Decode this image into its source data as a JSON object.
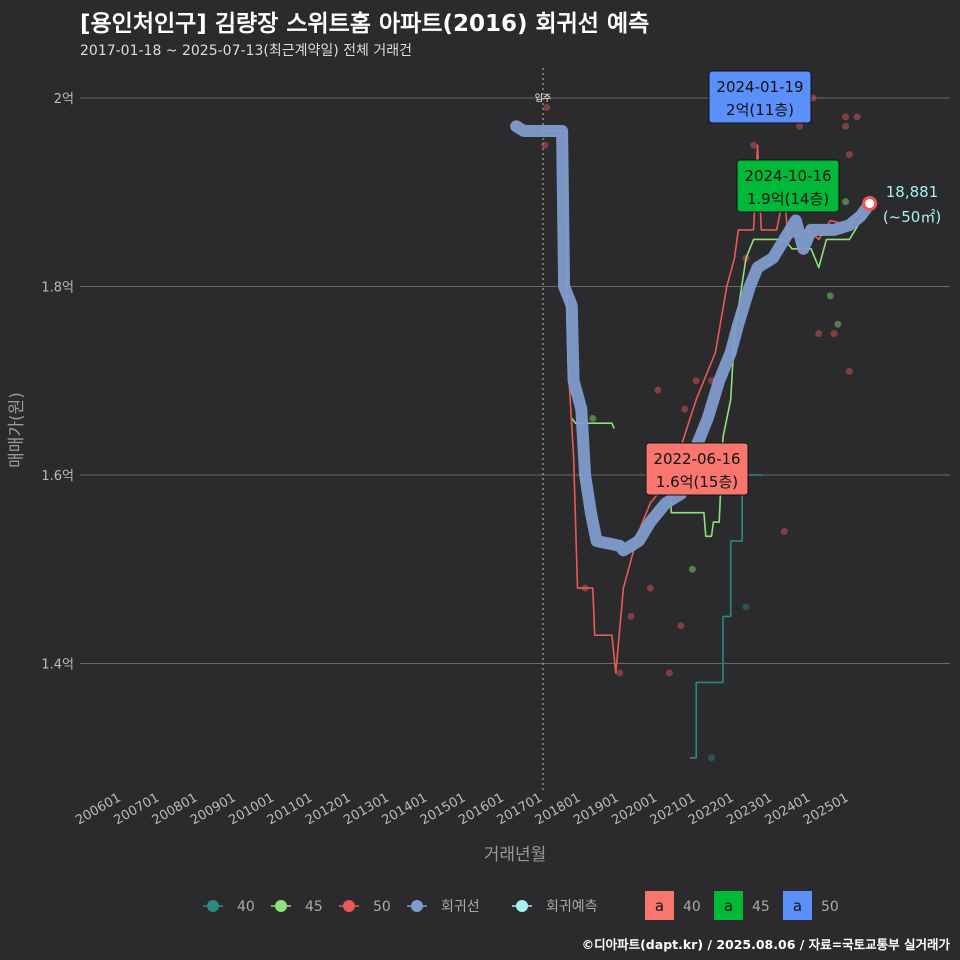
{
  "title": "[용인처인구] 김량장 스위트홈 아파트(2016) 회귀선 예측",
  "subtitle": "2017-01-18 ~ 2025-07-13(최근계약일) 전체 거래건",
  "caption": "©디아파트(dapt.kr) / 2025.08.06 / 자료=국토교통부 실거래가",
  "chart_data": {
    "type": "line",
    "xlabel": "거래년월",
    "ylabel": "매매가(원)",
    "ylim": [
      12700,
      20300
    ],
    "yticks": [
      {
        "v": 14000,
        "label": "1.4억"
      },
      {
        "v": 16000,
        "label": "1.6억"
      },
      {
        "v": 18000,
        "label": "1.8억"
      },
      {
        "v": 20000,
        "label": "2억"
      }
    ],
    "xlim": [
      2005.2,
      2025.95
    ],
    "xticks": [
      "200601",
      "200701",
      "200801",
      "200901",
      "201001",
      "201101",
      "201201",
      "201301",
      "201401",
      "201501",
      "201601",
      "201701",
      "201801",
      "201901",
      "202001",
      "202101",
      "202201",
      "202301",
      "202401",
      "202501"
    ],
    "vline": {
      "x": 2017.0,
      "label": "입주"
    },
    "colors": {
      "40": "#2a8a82",
      "45": "#8ee27a",
      "50": "#e85a5a",
      "regression": "#7f9ccc",
      "forecast": "#a8f0ee"
    },
    "series": [
      {
        "name": "40",
        "points": [
          [
            2020.85,
            13000
          ],
          [
            2021.0,
            13000
          ],
          [
            2021.0,
            13800
          ],
          [
            2021.7,
            13800
          ],
          [
            2021.7,
            14500
          ],
          [
            2021.9,
            14500
          ],
          [
            2021.9,
            15300
          ],
          [
            2022.2,
            15300
          ],
          [
            2022.2,
            16000
          ],
          [
            2022.7,
            16000
          ]
        ]
      },
      {
        "name": "45",
        "points": [
          [
            2017.75,
            16600
          ],
          [
            2017.85,
            16550
          ],
          [
            2018.8,
            16550
          ],
          [
            2018.85,
            16500
          ]
        ],
        "points2": [
          [
            2019.75,
            16000
          ],
          [
            2020.3,
            16000
          ],
          [
            2020.35,
            15600
          ],
          [
            2021.2,
            15600
          ],
          [
            2021.25,
            15350
          ],
          [
            2021.4,
            15350
          ],
          [
            2021.45,
            15500
          ],
          [
            2021.6,
            15500
          ],
          [
            2021.7,
            16400
          ],
          [
            2021.9,
            16800
          ],
          [
            2022.0,
            17500
          ],
          [
            2022.3,
            18300
          ],
          [
            2022.5,
            18500
          ],
          [
            2023.3,
            18500
          ],
          [
            2023.5,
            18400
          ],
          [
            2024.0,
            18400
          ],
          [
            2024.2,
            18200
          ],
          [
            2024.4,
            18500
          ],
          [
            2025.0,
            18500
          ],
          [
            2025.3,
            18700
          ]
        ]
      },
      {
        "name": "50",
        "points": [
          [
            2017.0,
            19650
          ],
          [
            2017.6,
            19650
          ],
          [
            2017.65,
            17200
          ],
          [
            2017.8,
            16200
          ],
          [
            2017.9,
            14800
          ],
          [
            2018.3,
            14800
          ],
          [
            2018.35,
            14300
          ],
          [
            2018.8,
            14300
          ],
          [
            2018.9,
            13900
          ],
          [
            2019.1,
            14800
          ],
          [
            2019.3,
            15100
          ],
          [
            2019.5,
            15400
          ],
          [
            2019.8,
            15700
          ],
          [
            2020.2,
            15900
          ],
          [
            2020.6,
            16300
          ],
          [
            2021.0,
            16800
          ],
          [
            2021.5,
            17300
          ],
          [
            2021.8,
            18000
          ],
          [
            2022.0,
            18300
          ],
          [
            2022.1,
            18600
          ],
          [
            2022.5,
            18600
          ],
          [
            2022.6,
            19500
          ],
          [
            2022.7,
            18600
          ],
          [
            2023.1,
            18600
          ],
          [
            2023.3,
            19000
          ],
          [
            2023.4,
            18500
          ],
          [
            2023.9,
            18600
          ],
          [
            2024.2,
            18500
          ],
          [
            2024.5,
            18700
          ],
          [
            2025.0,
            18650
          ],
          [
            2025.3,
            18800
          ],
          [
            2025.53,
            18881
          ]
        ]
      },
      {
        "name": "회귀선",
        "points": [
          [
            2016.3,
            19700
          ],
          [
            2016.5,
            19650
          ],
          [
            2017.5,
            19650
          ],
          [
            2017.55,
            18000
          ],
          [
            2017.75,
            17800
          ],
          [
            2017.8,
            17000
          ],
          [
            2018.0,
            16700
          ],
          [
            2018.1,
            16000
          ],
          [
            2018.25,
            15600
          ],
          [
            2018.4,
            15300
          ],
          [
            2019.0,
            15250
          ],
          [
            2019.1,
            15200
          ],
          [
            2019.5,
            15300
          ],
          [
            2019.8,
            15500
          ],
          [
            2020.2,
            15700
          ],
          [
            2020.6,
            15800
          ],
          [
            2021.0,
            16300
          ],
          [
            2021.3,
            16600
          ],
          [
            2021.6,
            17000
          ],
          [
            2021.9,
            17300
          ],
          [
            2022.1,
            17600
          ],
          [
            2022.4,
            18000
          ],
          [
            2022.6,
            18200
          ],
          [
            2023.0,
            18300
          ],
          [
            2023.3,
            18500
          ],
          [
            2023.6,
            18700
          ],
          [
            2023.8,
            18400
          ],
          [
            2024.0,
            18600
          ],
          [
            2024.6,
            18600
          ],
          [
            2025.0,
            18650
          ],
          [
            2025.3,
            18750
          ],
          [
            2025.53,
            18881
          ]
        ]
      }
    ],
    "scatter": [
      {
        "g": "50",
        "x": 2017.1,
        "y": 19900
      },
      {
        "g": "50",
        "x": 2017.05,
        "y": 19500
      },
      {
        "g": "50",
        "x": 2018.1,
        "y": 14800
      },
      {
        "g": "50",
        "x": 2019.0,
        "y": 13900
      },
      {
        "g": "50",
        "x": 2019.3,
        "y": 14500
      },
      {
        "g": "50",
        "x": 2019.8,
        "y": 14800
      },
      {
        "g": "50",
        "x": 2020.0,
        "y": 16900
      },
      {
        "g": "50",
        "x": 2020.3,
        "y": 13900
      },
      {
        "g": "50",
        "x": 2020.6,
        "y": 14400
      },
      {
        "g": "50",
        "x": 2020.7,
        "y": 16700
      },
      {
        "g": "50",
        "x": 2021.0,
        "y": 17000
      },
      {
        "g": "50",
        "x": 2021.4,
        "y": 17000
      },
      {
        "g": "50",
        "x": 2021.9,
        "y": 17300
      },
      {
        "g": "50",
        "x": 2022.3,
        "y": 18300
      },
      {
        "g": "50",
        "x": 2022.5,
        "y": 19500
      },
      {
        "g": "50",
        "x": 2023.3,
        "y": 15400
      },
      {
        "g": "50",
        "x": 2024.05,
        "y": 20000
      },
      {
        "g": "50",
        "x": 2023.7,
        "y": 19700
      },
      {
        "g": "50",
        "x": 2024.2,
        "y": 17500
      },
      {
        "g": "50",
        "x": 2024.9,
        "y": 19800
      },
      {
        "g": "50",
        "x": 2025.2,
        "y": 19800
      },
      {
        "g": "50",
        "x": 2024.9,
        "y": 19700
      },
      {
        "g": "50",
        "x": 2025.0,
        "y": 19400
      },
      {
        "g": "50",
        "x": 2024.6,
        "y": 17500
      },
      {
        "g": "50",
        "x": 2025.0,
        "y": 17100
      },
      {
        "g": "45",
        "x": 2018.3,
        "y": 16600
      },
      {
        "g": "45",
        "x": 2020.9,
        "y": 15000
      },
      {
        "g": "45",
        "x": 2024.5,
        "y": 17900
      },
      {
        "g": "45",
        "x": 2024.9,
        "y": 18900
      },
      {
        "g": "45",
        "x": 2024.7,
        "y": 17600
      },
      {
        "g": "40",
        "x": 2021.4,
        "y": 13000
      },
      {
        "g": "40",
        "x": 2022.3,
        "y": 14600
      }
    ],
    "annotations": [
      {
        "date": "2024-01-19",
        "value": "2억(11층)",
        "group": "50",
        "color": "#5b8ff9"
      },
      {
        "date": "2024-10-16",
        "value": "1.9억(14층)",
        "group": "45",
        "color": "#00b938"
      },
      {
        "date": "2022-06-16",
        "value": "1.6억(15층)",
        "group": "40",
        "color": "#f8766d"
      }
    ],
    "forecast": {
      "value": "18,881",
      "area": "(~50㎡)",
      "x": 2025.53,
      "y": 18881
    },
    "legend": {
      "lines": [
        "40",
        "45",
        "50",
        "회귀선",
        "회귀예측"
      ],
      "boxes": [
        {
          "label": "40",
          "color": "#f8766d"
        },
        {
          "label": "45",
          "color": "#00b938"
        },
        {
          "label": "50",
          "color": "#5b8ff9"
        }
      ],
      "box_glyph": "a"
    }
  }
}
